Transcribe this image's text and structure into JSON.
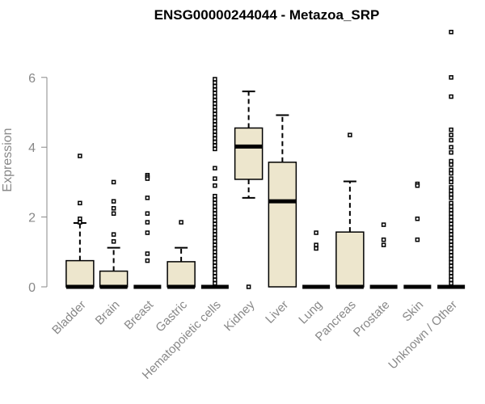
{
  "chart_data": {
    "type": "box",
    "title": "ENSG00000244044 - Metazoa_SRP",
    "ylabel": "Expression",
    "xlabel": "",
    "ylim": [
      0,
      7.3
    ],
    "yticks": [
      0,
      2,
      4,
      6
    ],
    "grid": false,
    "colors": {
      "box_fill": "#ede6cd",
      "box_stroke": "#000000",
      "axis": "#888888",
      "tick_text": "#888888"
    },
    "categories": [
      "Bladder",
      "Brain",
      "Breast",
      "Gastric",
      "Hematopoietic cells",
      "Kidney",
      "Liver",
      "Lung",
      "Pancreas",
      "Prostate",
      "Skin",
      "Unknown / Other"
    ],
    "boxes": [
      {
        "category": "Bladder",
        "min": 0,
        "q1": 0,
        "median": 0,
        "q3": 0.75,
        "max": 1.83,
        "outliers": [
          3.75,
          2.4,
          1.95,
          1.85
        ]
      },
      {
        "category": "Brain",
        "min": 0,
        "q1": 0,
        "median": 0,
        "q3": 0.45,
        "max": 1.12,
        "outliers": [
          3.0,
          2.45,
          2.25,
          2.1,
          1.5,
          1.3
        ]
      },
      {
        "category": "Breast",
        "min": 0,
        "q1": 0,
        "median": 0,
        "q3": 0,
        "max": 0,
        "outliers": [
          3.2,
          3.15,
          3.1,
          2.55,
          2.1,
          1.85,
          1.55,
          0.95,
          0.75
        ]
      },
      {
        "category": "Gastric",
        "min": 0,
        "q1": 0,
        "median": 0,
        "q3": 0.72,
        "max": 1.12,
        "outliers": [
          1.85
        ]
      },
      {
        "category": "Hematopoietic cells",
        "min": 0,
        "q1": 0,
        "median": 0,
        "q3": 0,
        "max": 0,
        "outliers": [
          5.95,
          5.85,
          5.75,
          5.65,
          5.55,
          5.45,
          5.35,
          5.25,
          5.15,
          5.05,
          4.95,
          4.85,
          4.75,
          4.65,
          4.55,
          4.45,
          4.35,
          4.25,
          4.15,
          4.05,
          3.95,
          3.4,
          3.1,
          2.9,
          2.6,
          2.5,
          2.4,
          2.3,
          2.2,
          2.1,
          2.0,
          1.9,
          1.8,
          1.7,
          1.6,
          1.5,
          1.4,
          1.3,
          1.2,
          1.1,
          1.0,
          0.9,
          0.8,
          0.7,
          0.6,
          0.5,
          0.4,
          0.3,
          0.2,
          0.1
        ]
      },
      {
        "category": "Kidney",
        "min": 2.55,
        "q1": 3.08,
        "median": 4.02,
        "q3": 4.55,
        "max": 5.6,
        "outliers": [
          0
        ]
      },
      {
        "category": "Liver",
        "min": 0,
        "q1": 0,
        "median": 2.45,
        "q3": 3.57,
        "max": 4.92,
        "outliers": []
      },
      {
        "category": "Lung",
        "min": 0,
        "q1": 0,
        "median": 0,
        "q3": 0,
        "max": 0,
        "outliers": [
          1.55,
          1.2,
          1.1
        ]
      },
      {
        "category": "Pancreas",
        "min": 0,
        "q1": 0,
        "median": 0,
        "q3": 1.57,
        "max": 3.02,
        "outliers": [
          4.35
        ]
      },
      {
        "category": "Prostate",
        "min": 0,
        "q1": 0,
        "median": 0,
        "q3": 0,
        "max": 0,
        "outliers": [
          1.78,
          1.35,
          1.2
        ]
      },
      {
        "category": "Skin",
        "min": 0,
        "q1": 0,
        "median": 0,
        "q3": 0,
        "max": 0,
        "outliers": [
          2.95,
          2.9,
          1.95,
          1.35
        ]
      },
      {
        "category": "Unknown / Other",
        "min": 0,
        "q1": 0,
        "median": 0,
        "q3": 0,
        "max": 0,
        "outliers": [
          7.3,
          6.0,
          5.45,
          4.5,
          4.35,
          4.2,
          4.0,
          3.85,
          3.6,
          3.5,
          3.35,
          3.25,
          3.1,
          3.0,
          2.85,
          2.75,
          2.65,
          2.55,
          2.4,
          2.3,
          2.2,
          2.1,
          2.0,
          1.9,
          1.8,
          1.7,
          1.6,
          1.5,
          1.4,
          1.3,
          1.2,
          1.1,
          1.0,
          0.9,
          0.8,
          0.7,
          0.6,
          0.5,
          0.4,
          0.3,
          0.2,
          0.1
        ]
      }
    ]
  }
}
